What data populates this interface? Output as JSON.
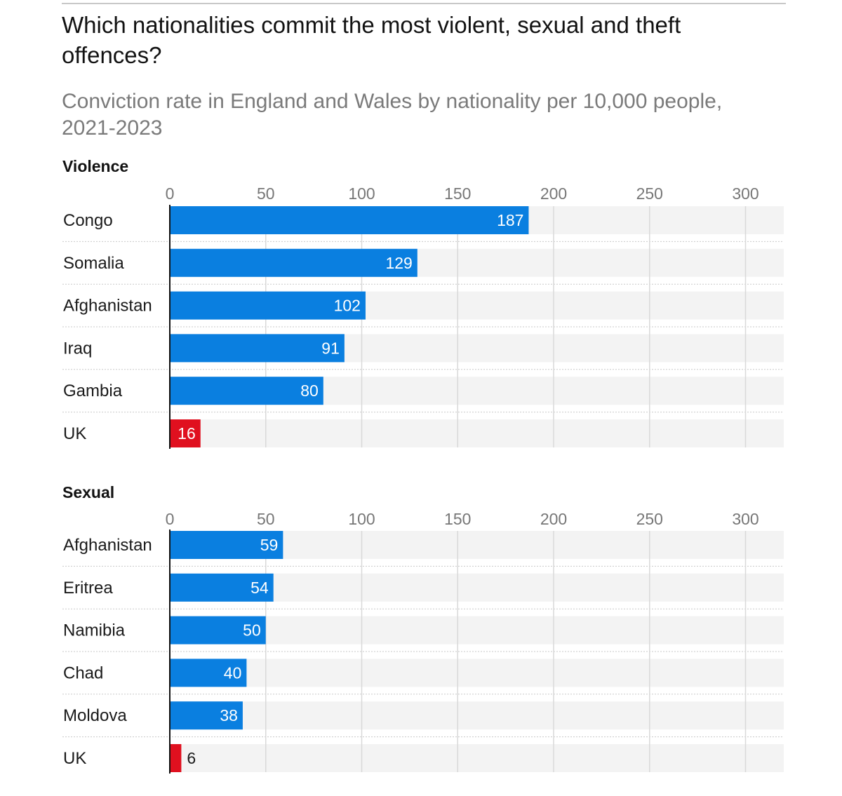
{
  "title": "Which nationalities commit the most violent, sexual and theft offences?",
  "subtitle": "Conviction rate in England and Wales by nationality per 10,000 people, 2021-2023",
  "colors": {
    "bar": "#0a7fe0",
    "highlight": "#e0101f",
    "track": "#f3f3f3",
    "grid": "#d9d9d9"
  },
  "chart_data": [
    {
      "type": "bar",
      "orientation": "horizontal",
      "title": "Violence",
      "categories": [
        "Congo",
        "Somalia",
        "Afghanistan",
        "Iraq",
        "Gambia",
        "UK"
      ],
      "values": [
        187,
        129,
        102,
        91,
        80,
        16
      ],
      "highlight": [
        "UK"
      ],
      "xticks": [
        0,
        50,
        100,
        150,
        200,
        250,
        300
      ],
      "xlim": [
        0,
        320
      ]
    },
    {
      "type": "bar",
      "orientation": "horizontal",
      "title": "Sexual",
      "categories": [
        "Afghanistan",
        "Eritrea",
        "Namibia",
        "Chad",
        "Moldova",
        "UK"
      ],
      "values": [
        59,
        54,
        50,
        40,
        38,
        6
      ],
      "highlight": [
        "UK"
      ],
      "xticks": [
        0,
        50,
        100,
        150,
        200,
        250,
        300
      ],
      "xlim": [
        0,
        320
      ]
    }
  ]
}
